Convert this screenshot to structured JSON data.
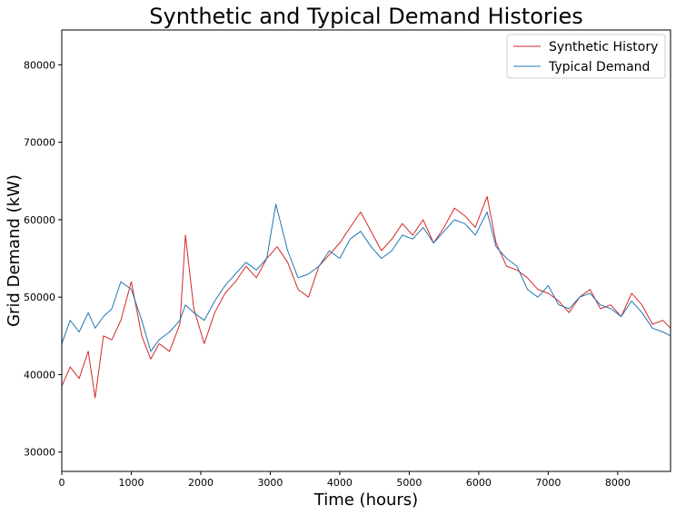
{
  "chart_data": {
    "type": "line",
    "title": "Synthetic and Typical Demand Histories",
    "xlabel": "Time (hours)",
    "ylabel": "Grid Demand (kW)",
    "xlim": [
      0,
      8760
    ],
    "ylim": [
      27500,
      84500
    ],
    "xticks": [
      0,
      1000,
      2000,
      3000,
      4000,
      5000,
      6000,
      7000,
      8000
    ],
    "yticks": [
      30000,
      40000,
      50000,
      60000,
      70000,
      80000
    ],
    "grid": false,
    "legend_position": "top-right",
    "series": [
      {
        "name": "Synthetic History",
        "color": "#d62728",
        "x": [
          0,
          120,
          250,
          380,
          480,
          600,
          720,
          850,
          1000,
          1150,
          1280,
          1400,
          1550,
          1700,
          1780,
          1900,
          2050,
          2200,
          2350,
          2500,
          2650,
          2800,
          2950,
          3100,
          3250,
          3400,
          3550,
          3700,
          3850,
          4000,
          4150,
          4300,
          4450,
          4600,
          4750,
          4900,
          5050,
          5200,
          5350,
          5500,
          5650,
          5800,
          5950,
          6120,
          6250,
          6400,
          6550,
          6700,
          6850,
          7000,
          7150,
          7300,
          7450,
          7600,
          7750,
          7900,
          8050,
          8200,
          8350,
          8500,
          8650,
          8760
        ],
        "y": [
          38500,
          41000,
          39500,
          43000,
          37000,
          45000,
          44500,
          47000,
          52000,
          45000,
          42000,
          44000,
          43000,
          46500,
          58000,
          48500,
          44000,
          48000,
          50500,
          52000,
          54000,
          52500,
          55000,
          56500,
          54500,
          51000,
          50000,
          54000,
          55500,
          57000,
          59000,
          61000,
          58500,
          56000,
          57500,
          59500,
          58000,
          60000,
          57000,
          59000,
          61500,
          60500,
          59000,
          63000,
          57000,
          54000,
          53500,
          52500,
          51000,
          50500,
          49500,
          48000,
          50000,
          51000,
          48500,
          49000,
          47500,
          50500,
          49000,
          46500,
          47000,
          46000
        ]
      },
      {
        "name": "Typical Demand",
        "color": "#1f77b4",
        "x": [
          0,
          120,
          250,
          380,
          480,
          600,
          720,
          850,
          1000,
          1150,
          1280,
          1400,
          1550,
          1700,
          1780,
          1900,
          2050,
          2200,
          2350,
          2500,
          2650,
          2800,
          2950,
          3080,
          3250,
          3400,
          3550,
          3700,
          3850,
          4000,
          4150,
          4300,
          4450,
          4600,
          4750,
          4900,
          5050,
          5200,
          5350,
          5500,
          5650,
          5800,
          5950,
          6120,
          6250,
          6400,
          6550,
          6700,
          6850,
          7000,
          7150,
          7300,
          7450,
          7600,
          7750,
          7900,
          8050,
          8200,
          8350,
          8500,
          8650,
          8760
        ],
        "y": [
          44000,
          47000,
          45500,
          48000,
          46000,
          47500,
          48500,
          52000,
          51000,
          47000,
          43000,
          44500,
          45500,
          47000,
          49000,
          48000,
          47000,
          49500,
          51500,
          53000,
          54500,
          53500,
          55000,
          62000,
          56000,
          52500,
          53000,
          54000,
          56000,
          55000,
          57500,
          58500,
          56500,
          55000,
          56000,
          58000,
          57500,
          59000,
          57000,
          58500,
          60000,
          59500,
          58000,
          61000,
          56500,
          55000,
          54000,
          51000,
          50000,
          51500,
          49000,
          48500,
          50000,
          50500,
          49000,
          48500,
          47500,
          49500,
          48000,
          46000,
          45500,
          45000
        ]
      }
    ]
  }
}
